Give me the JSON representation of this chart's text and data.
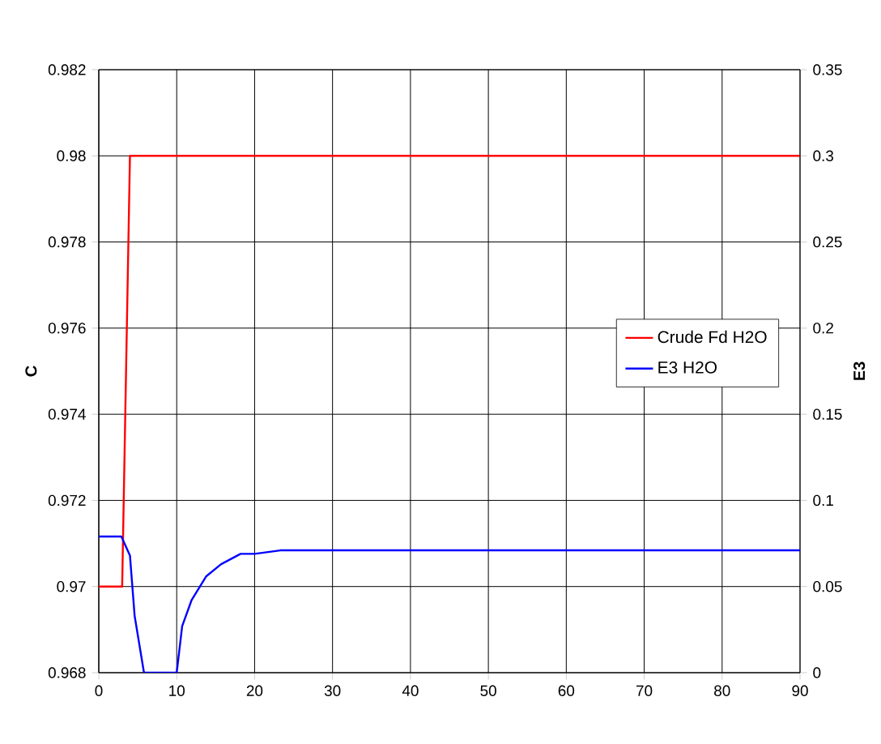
{
  "chart_data": {
    "type": "line",
    "ylabel": "C",
    "y2label": "E3",
    "xlim": [
      0,
      90
    ],
    "xticks": [
      0,
      10,
      20,
      30,
      40,
      50,
      60,
      70,
      80,
      90
    ],
    "ylim": [
      0.968,
      0.982
    ],
    "yticks": [
      0.968,
      0.97,
      0.972,
      0.974,
      0.976,
      0.978,
      0.98,
      0.982
    ],
    "y2lim": [
      0,
      0.35
    ],
    "y2ticks": [
      0,
      0.05,
      0.1,
      0.15,
      0.2,
      0.25,
      0.3,
      0.35
    ],
    "grid": true,
    "legend": "right",
    "marker": "none",
    "line_style": "solid",
    "series": [
      {
        "name": "Crude Fd H2O",
        "color": "#ff0000",
        "x": [
          0,
          3,
          4,
          90
        ],
        "values": [
          0.97,
          0.97,
          0.98,
          0.98
        ]
      },
      {
        "name": "E3 H2O",
        "color": "#0000ff",
        "axis": "y2",
        "x": [
          0,
          2.9,
          4,
          4.6,
          5.8,
          10,
          10.7,
          11.9,
          13.8,
          15.7,
          18.2,
          20,
          23.3,
          90
        ],
        "values": [
          0.079,
          0.079,
          0.068,
          0.033,
          0,
          0,
          0.027,
          0.042,
          0.056,
          0.063,
          0.069,
          0.069,
          0.071,
          0.071
        ]
      }
    ]
  }
}
